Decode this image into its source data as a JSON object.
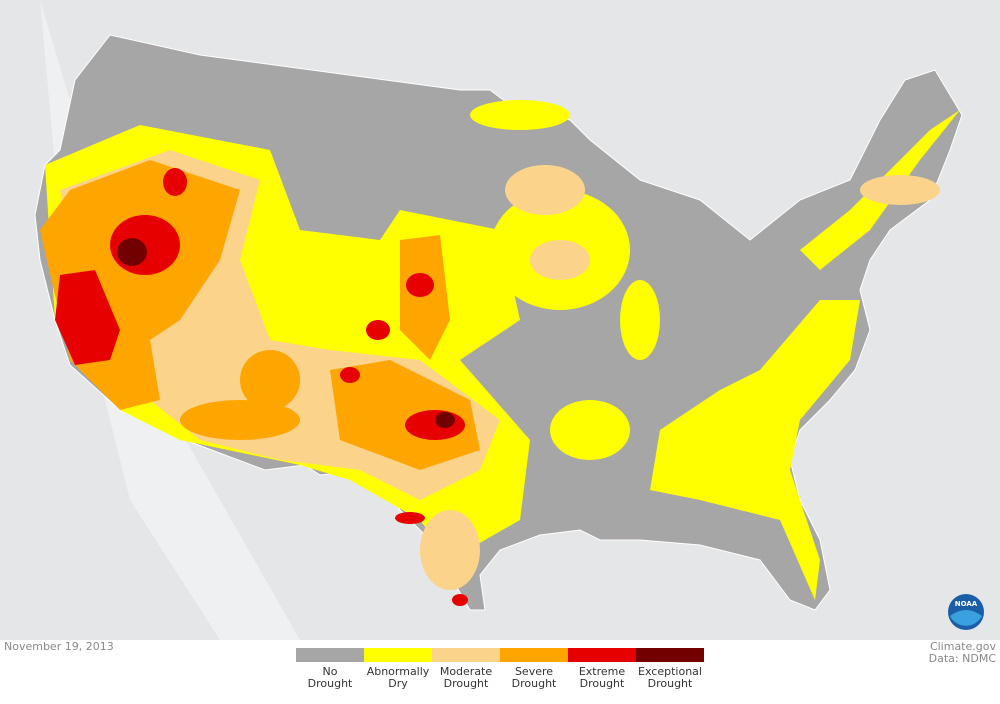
{
  "footer": {
    "date": "November 19, 2013",
    "source": "Climate.gov",
    "data_credit": "Data: NDMC",
    "logo_text": "NOAA"
  },
  "legend": [
    {
      "label": "No Drought",
      "color": "#a6a6a6"
    },
    {
      "label": "Abnormally Dry",
      "color": "#ffff00"
    },
    {
      "label": "Moderate Drought",
      "color": "#fcd38a"
    },
    {
      "label": "Severe Drought",
      "color": "#ffa500"
    },
    {
      "label": "Extreme Drought",
      "color": "#e60000"
    },
    {
      "label": "Exceptional Drought",
      "color": "#730000"
    }
  ]
}
